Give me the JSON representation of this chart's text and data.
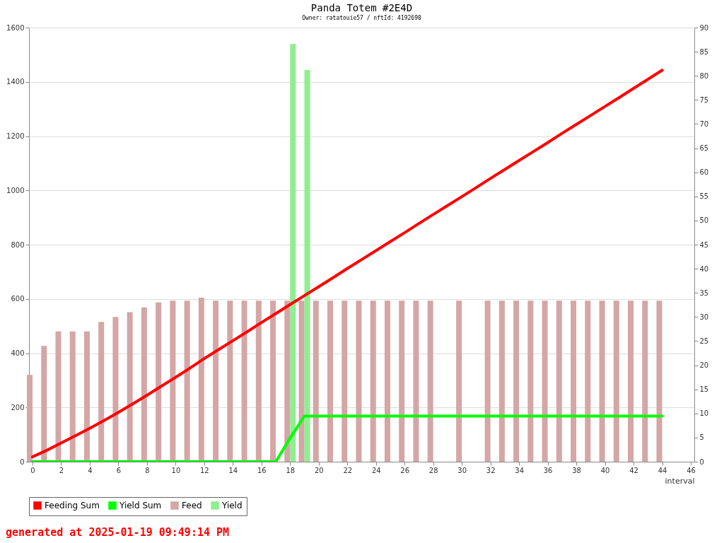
{
  "chart_data": {
    "type": "bar",
    "title": "Panda Totem #2E4D",
    "subtitle": "Owner: ratatouie57 / nftId: 4192690",
    "xlabel": "interval",
    "x": [
      0,
      1,
      2,
      3,
      4,
      5,
      6,
      7,
      8,
      9,
      10,
      11,
      12,
      13,
      14,
      15,
      16,
      17,
      18,
      19,
      20,
      21,
      22,
      23,
      24,
      25,
      26,
      27,
      28,
      29,
      30,
      31,
      32,
      33,
      34,
      35,
      36,
      37,
      38,
      39,
      40,
      41,
      42,
      43,
      44
    ],
    "series": [
      {
        "name": "Feeding Sum",
        "type": "line",
        "color": "#ff0000",
        "values": [
          18,
          42,
          69,
          96,
          123,
          152,
          182,
          213,
          245,
          278,
          311,
          345,
          380,
          413,
          446,
          479,
          513,
          546,
          579,
          612,
          645,
          678,
          712,
          745,
          778,
          811,
          844,
          878,
          911,
          944,
          977,
          1010,
          1044,
          1077,
          1110,
          1143,
          1176,
          1210,
          1243,
          1276,
          1309,
          1342,
          1376,
          1409,
          1443
        ]
      },
      {
        "name": "Yield Sum",
        "type": "line",
        "color": "#00ff00",
        "values": [
          0,
          0,
          0,
          0,
          0,
          0,
          0,
          0,
          0,
          0,
          0,
          0,
          0,
          0,
          0,
          0,
          0,
          0,
          87,
          168,
          168,
          168,
          168,
          168,
          168,
          168,
          168,
          168,
          168,
          168,
          168,
          168,
          168,
          168,
          168,
          168,
          168,
          168,
          168,
          168,
          168,
          168,
          168,
          168,
          168
        ]
      },
      {
        "name": "Feed",
        "axis": "y2",
        "color": "#d4a6a6",
        "values": [
          18,
          24,
          27,
          27,
          27,
          29,
          30,
          31,
          32,
          33,
          33.4,
          33.4,
          34,
          33.4,
          33.4,
          33.4,
          33.4,
          33.4,
          33.4,
          33.4,
          33.4,
          33.4,
          33.4,
          33.4,
          33.4,
          33.4,
          33.4,
          33.4,
          33.4,
          null,
          33.4,
          null,
          33.4,
          33.4,
          33.4,
          33.4,
          33.4,
          33.4,
          33.4,
          33.4,
          33.4,
          33.4,
          33.4,
          33.4,
          33.4
        ]
      },
      {
        "name": "Yield",
        "axis": "y2",
        "color": "#90ee90",
        "values": [
          null,
          null,
          null,
          null,
          null,
          null,
          null,
          null,
          null,
          null,
          null,
          null,
          null,
          null,
          null,
          null,
          null,
          null,
          86.6,
          81.2,
          null,
          null,
          null,
          null,
          null,
          null,
          null,
          null,
          null,
          null,
          null,
          null,
          null,
          null,
          null,
          null,
          null,
          null,
          null,
          null,
          null,
          null,
          null,
          null,
          null
        ]
      }
    ],
    "xlim": [
      0,
      46
    ],
    "xticks": [
      0,
      2,
      4,
      6,
      8,
      10,
      12,
      14,
      16,
      18,
      20,
      22,
      24,
      26,
      28,
      30,
      32,
      34,
      36,
      38,
      40,
      42,
      44,
      46
    ],
    "ylim": [
      0,
      1600
    ],
    "yticks": [
      0,
      200,
      400,
      600,
      800,
      1000,
      1200,
      1400,
      1600
    ],
    "y2lim": [
      0,
      90
    ],
    "y2ticks": [
      0,
      5,
      10,
      15,
      20,
      25,
      30,
      35,
      40,
      45,
      50,
      55,
      60,
      65,
      70,
      75,
      80,
      85,
      90
    ],
    "grid": "y",
    "legend": "bottom",
    "annotations": [
      "generated at 2025-01-19 09:49:14 PM"
    ]
  }
}
